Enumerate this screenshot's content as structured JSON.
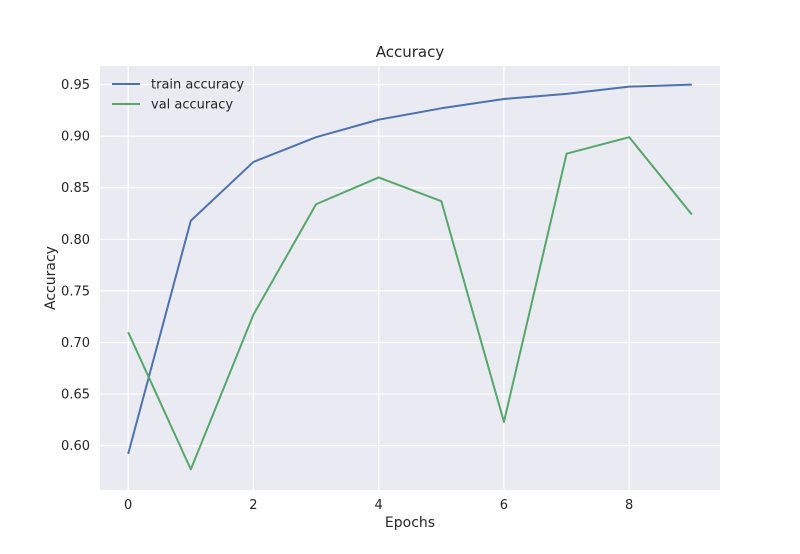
{
  "chart_data": {
    "type": "line",
    "title": "Accuracy",
    "xlabel": "Epochs",
    "ylabel": "Accuracy",
    "x": [
      0,
      1,
      2,
      3,
      4,
      5,
      6,
      7,
      8,
      9
    ],
    "xticks": [
      "0",
      "2",
      "4",
      "6",
      "8"
    ],
    "xlim": [
      -0.45,
      9.45
    ],
    "ylim": [
      0.557,
      0.968
    ],
    "yticks": [
      "0.60",
      "0.65",
      "0.70",
      "0.75",
      "0.80",
      "0.85",
      "0.90",
      "0.95"
    ],
    "grid": true,
    "legend_position": "upper-left",
    "series": [
      {
        "name": "train accuracy",
        "color": "#4c72b0",
        "values": [
          0.592,
          0.818,
          0.875,
          0.899,
          0.916,
          0.927,
          0.936,
          0.941,
          0.948,
          0.95
        ]
      },
      {
        "name": "val accuracy",
        "color": "#55a868",
        "values": [
          0.71,
          0.577,
          0.727,
          0.834,
          0.86,
          0.837,
          0.623,
          0.883,
          0.899,
          0.824
        ]
      }
    ],
    "plot_background": "#eaeaf2",
    "grid_color": "#ffffff"
  }
}
